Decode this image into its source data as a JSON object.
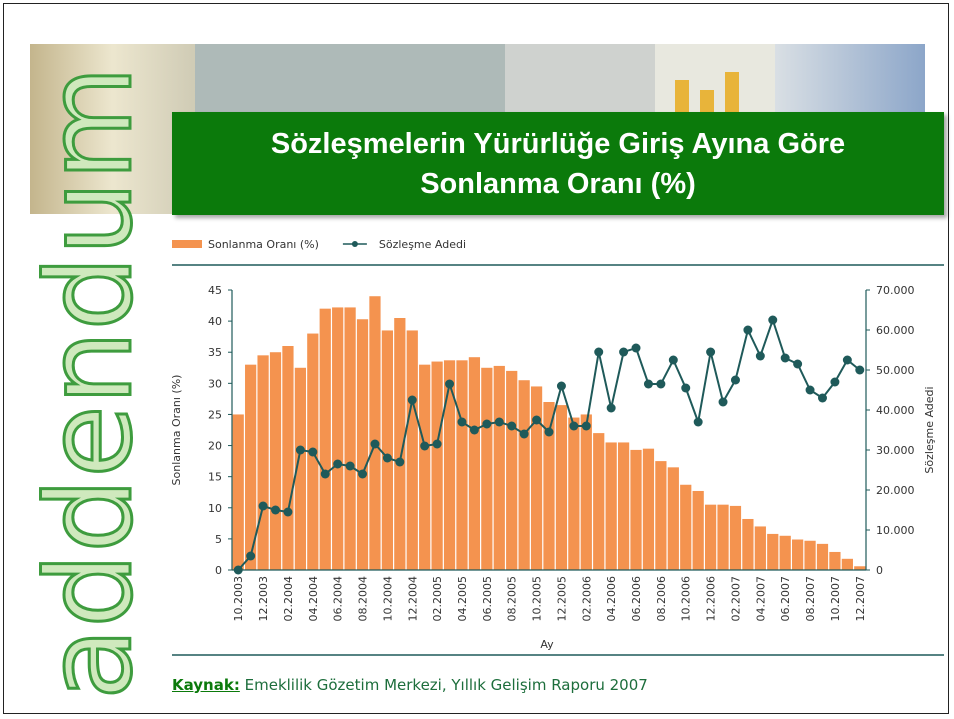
{
  "logo": "addendum",
  "source": {
    "label": "Kaynak:",
    "text": "Emeklilik Gözetim Merkezi, Yıllık Gelişim Raporu 2007"
  },
  "chart_data": {
    "type": "bar",
    "title": "Sözleşmelerin Yürürlüğe Giriş Ayına Göre Sonlanma Oranı (%)",
    "x_label": "Ay",
    "y_label": "Sonlanma Oranı (%)",
    "y2_label": "Sözleşme Adedi",
    "categories": [
      "10.2003",
      null,
      "12.2003",
      null,
      "02.2004",
      null,
      "04.2004",
      null,
      "06.2004",
      null,
      "08.2004",
      null,
      "10.2004",
      null,
      "12.2004",
      null,
      "02.2005",
      null,
      "04.2005",
      null,
      "06.2005",
      null,
      "08.2005",
      null,
      "10.2005",
      null,
      "12.2005",
      null,
      "02.2006",
      null,
      "04.2006",
      null,
      "06.2006",
      null,
      "08.2006",
      null,
      "10.2006",
      null,
      "12.2006",
      null,
      "02.2007",
      null,
      "04.2007",
      null,
      "06.2007",
      null,
      "08.2007",
      null,
      "10.2007",
      null,
      "12.2007"
    ],
    "series": [
      {
        "name": "Sonlanma Oranı (%)",
        "type": "bar",
        "color": "#f4934f",
        "values": [
          25,
          33,
          34.5,
          35,
          36,
          32.5,
          38,
          42,
          42.2,
          42.2,
          40.3,
          44,
          38.5,
          40.5,
          38.5,
          33,
          33.5,
          33.7,
          33.7,
          34.2,
          32.5,
          32.8,
          32,
          30.5,
          29.5,
          27,
          26.5,
          24.5,
          25,
          22,
          20.5,
          20.5,
          19.3,
          19.5,
          17.5,
          16.5,
          13.7,
          12.7,
          10.5,
          10.5,
          10.3,
          8.2,
          7,
          5.8,
          5.5,
          4.9,
          4.7,
          4.2,
          2.9,
          1.8,
          0.6
        ]
      },
      {
        "name": "Sözleşme Adedi",
        "type": "line",
        "axis": "y2",
        "color": "#1f5a5a",
        "values": [
          0,
          3500,
          16000,
          15000,
          14500,
          30000,
          29500,
          24000,
          26500,
          26000,
          24000,
          31500,
          28000,
          27000,
          42500,
          31000,
          31500,
          46500,
          37000,
          35000,
          36500,
          37000,
          36000,
          34000,
          37500,
          34500,
          46000,
          36000,
          36000,
          54500,
          40500,
          54500,
          55500,
          46500,
          46500,
          52500,
          45500,
          37000,
          54500,
          42000,
          47500,
          60000,
          53500,
          62500,
          53000,
          51500,
          45000,
          43000,
          47000,
          52500,
          50000
        ]
      }
    ],
    "ylim": [
      0,
      45
    ],
    "yticks": [
      0,
      5,
      10,
      15,
      20,
      25,
      30,
      35,
      40,
      45
    ],
    "y2lim": [
      0,
      70000
    ],
    "y2ticks": [
      0,
      {
        "value": 10000,
        "label": "10.000"
      },
      {
        "value": 20000,
        "label": "20.000"
      },
      {
        "value": 30000,
        "label": "30.000"
      },
      {
        "value": 40000,
        "label": "40.000"
      },
      {
        "value": 50000,
        "label": "50.000"
      },
      {
        "value": 60000,
        "label": "60.000"
      },
      {
        "value": 70000,
        "label": "70.000"
      }
    ],
    "grid": false,
    "legend": "top"
  }
}
